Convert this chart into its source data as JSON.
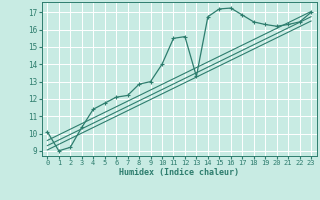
{
  "xlabel": "Humidex (Indice chaleur)",
  "ylabel": "",
  "bg_color": "#c8ebe3",
  "grid_color": "#ffffff",
  "line_color": "#2e7d6e",
  "xlim": [
    -0.5,
    23.5
  ],
  "ylim": [
    8.7,
    17.6
  ],
  "xticks": [
    0,
    1,
    2,
    3,
    4,
    5,
    6,
    7,
    8,
    9,
    10,
    11,
    12,
    13,
    14,
    15,
    16,
    17,
    18,
    19,
    20,
    21,
    22,
    23
  ],
  "yticks": [
    9,
    10,
    11,
    12,
    13,
    14,
    15,
    16,
    17
  ],
  "main_x": [
    0,
    1,
    2,
    3,
    4,
    5,
    6,
    7,
    8,
    9,
    10,
    11,
    12,
    13,
    14,
    15,
    16,
    17,
    18,
    19,
    20,
    21,
    22,
    23
  ],
  "main_y": [
    10.1,
    9.0,
    9.2,
    10.35,
    11.4,
    11.75,
    12.1,
    12.2,
    12.85,
    13.0,
    14.0,
    15.5,
    15.6,
    13.3,
    16.75,
    17.2,
    17.25,
    16.85,
    16.45,
    16.3,
    16.2,
    16.3,
    16.45,
    17.0
  ],
  "line1_x": [
    0,
    23
  ],
  "line1_y": [
    9.6,
    17.05
  ],
  "line2_x": [
    0,
    23
  ],
  "line2_y": [
    9.3,
    16.75
  ],
  "line3_x": [
    0,
    23
  ],
  "line3_y": [
    9.05,
    16.5
  ]
}
